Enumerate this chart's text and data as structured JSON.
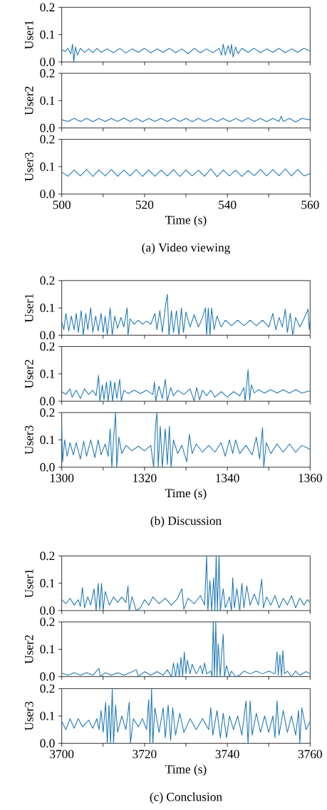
{
  "chart_data": [
    {
      "type": "line",
      "ylabel": "User1",
      "xlim": [
        500,
        560
      ],
      "xticks": [
        500,
        {
          "value": 510,
          "label": null
        },
        520,
        {
          "value": 530,
          "label": null
        },
        540,
        {
          "value": 550,
          "label": null
        },
        560
      ],
      "ylim": [
        0,
        0.2
      ],
      "yticks": [
        {
          "value": 0,
          "label": "0.0"
        },
        {
          "value": 0.1,
          "label": "0.1"
        },
        {
          "value": 0.2,
          "label": "0.2"
        }
      ],
      "tick_labels": "y",
      "series": [
        {
          "color": "#1f77b4",
          "x": [
            500,
            500.8,
            501.5,
            502.2,
            502.6,
            502.9,
            503.3,
            503.8,
            504.5,
            505.5,
            506.5,
            507.5,
            508.5,
            509.5,
            511,
            512.5,
            514,
            515.5,
            517,
            518.5,
            520,
            521.5,
            523,
            524.5,
            526,
            527.5,
            529,
            530.5,
            532,
            533.5,
            535,
            536.5,
            538,
            538.6,
            539,
            539.5,
            540.2,
            540.7,
            541,
            541.4,
            542,
            542.6,
            543.5,
            545,
            546.5,
            548,
            549.5,
            551,
            552.5,
            554,
            555.5,
            557,
            558.5,
            560
          ],
          "values": [
            0.045,
            0.038,
            0.05,
            0.03,
            0.065,
            0.0,
            0.055,
            0.025,
            0.05,
            0.035,
            0.048,
            0.034,
            0.05,
            0.035,
            0.048,
            0.034,
            0.05,
            0.033,
            0.048,
            0.035,
            0.05,
            0.034,
            0.048,
            0.035,
            0.05,
            0.034,
            0.048,
            0.03,
            0.05,
            0.034,
            0.048,
            0.034,
            0.05,
            0.025,
            0.065,
            0.025,
            0.06,
            0.03,
            0.065,
            0.018,
            0.055,
            0.03,
            0.05,
            0.035,
            0.05,
            0.034,
            0.048,
            0.035,
            0.05,
            0.034,
            0.048,
            0.035,
            0.05,
            0.04
          ]
        }
      ]
    },
    {
      "type": "line",
      "ylabel": "User2",
      "xlim": [
        500,
        560
      ],
      "xticks": [
        500,
        {
          "value": 510,
          "label": null
        },
        520,
        {
          "value": 530,
          "label": null
        },
        540,
        {
          "value": 550,
          "label": null
        },
        560
      ],
      "ylim": [
        0,
        0.2
      ],
      "yticks": [
        {
          "value": 0,
          "label": "0.0"
        },
        {
          "value": 0.1,
          "label": "0.1"
        },
        {
          "value": 0.2,
          "label": "0.2"
        }
      ],
      "tick_labels": "y",
      "series": [
        {
          "color": "#1f77b4",
          "x": [
            500,
            501.5,
            503,
            504.5,
            506,
            507.5,
            509,
            510.5,
            512,
            513.5,
            515,
            516.5,
            518,
            519.5,
            521,
            522.5,
            524,
            525.5,
            527,
            528.5,
            530,
            531.5,
            533,
            534.5,
            536,
            537.5,
            539,
            540.5,
            542,
            543.5,
            545,
            546.5,
            548,
            549.5,
            551,
            552.5,
            553,
            553.5,
            555,
            556.5,
            558,
            560
          ],
          "values": [
            0.03,
            0.024,
            0.035,
            0.024,
            0.035,
            0.023,
            0.035,
            0.024,
            0.035,
            0.024,
            0.036,
            0.024,
            0.035,
            0.023,
            0.035,
            0.024,
            0.035,
            0.024,
            0.036,
            0.024,
            0.035,
            0.023,
            0.035,
            0.024,
            0.035,
            0.024,
            0.035,
            0.023,
            0.035,
            0.024,
            0.036,
            0.024,
            0.035,
            0.023,
            0.035,
            0.024,
            0.043,
            0.024,
            0.035,
            0.022,
            0.035,
            0.03
          ]
        }
      ]
    },
    {
      "type": "line",
      "ylabel": "User3",
      "xlabel": "Time (s)",
      "annotations": [
        "(a) Video viewing"
      ],
      "xlim": [
        500,
        560
      ],
      "xticks": [
        500,
        {
          "value": 510,
          "label": null
        },
        520,
        {
          "value": 530,
          "label": null
        },
        540,
        {
          "value": 550,
          "label": null
        },
        560
      ],
      "ylim": [
        0,
        0.2
      ],
      "yticks": [
        {
          "value": 0,
          "label": "0.0"
        },
        {
          "value": 0.1,
          "label": "0.1"
        },
        {
          "value": 0.2,
          "label": "0.2"
        }
      ],
      "series": [
        {
          "color": "#1f77b4",
          "x": [
            500,
            501.5,
            503,
            504.5,
            506,
            507.5,
            509,
            510.5,
            512,
            513.5,
            515,
            516.5,
            518,
            519.5,
            521,
            522.5,
            524,
            525.5,
            527,
            528.5,
            530,
            531.5,
            533,
            534.5,
            536,
            537.5,
            539,
            540.5,
            542,
            543.5,
            545,
            546.5,
            548,
            549.5,
            551,
            552.5,
            554,
            555.5,
            557,
            558.5,
            560
          ],
          "values": [
            0.08,
            0.065,
            0.088,
            0.066,
            0.09,
            0.064,
            0.088,
            0.066,
            0.09,
            0.065,
            0.088,
            0.066,
            0.09,
            0.064,
            0.088,
            0.065,
            0.087,
            0.066,
            0.089,
            0.064,
            0.088,
            0.066,
            0.087,
            0.065,
            0.092,
            0.063,
            0.088,
            0.066,
            0.087,
            0.064,
            0.086,
            0.067,
            0.09,
            0.066,
            0.089,
            0.067,
            0.092,
            0.066,
            0.09,
            0.066,
            0.075
          ]
        }
      ]
    },
    {
      "type": "line",
      "ylabel": "User1",
      "xlim": [
        1300,
        1360
      ],
      "xticks": [
        1300,
        {
          "value": 1310,
          "label": null
        },
        1320,
        {
          "value": 1330,
          "label": null
        },
        1340,
        {
          "value": 1350,
          "label": null
        },
        1360
      ],
      "ylim": [
        0,
        0.2
      ],
      "yticks": [
        {
          "value": 0,
          "label": "0.0"
        },
        {
          "value": 0.1,
          "label": "0.1"
        },
        {
          "value": 0.2,
          "label": "0.2"
        }
      ],
      "tick_labels": "y",
      "series": [
        {
          "color": "#1f77b4",
          "x": [
            1300,
            1300.5,
            1301,
            1301.7,
            1302.3,
            1303,
            1303.5,
            1304,
            1304.7,
            1305.2,
            1305.8,
            1306.3,
            1307,
            1307.5,
            1308.2,
            1308.8,
            1309.5,
            1310,
            1310.5,
            1311,
            1311.7,
            1312.2,
            1312.8,
            1313.5,
            1314.3,
            1315,
            1315.8,
            1316,
            1316.5,
            1317.5,
            1318.5,
            1319.5,
            1320.5,
            1321.5,
            1322.5,
            1323,
            1323.7,
            1324.3,
            1325,
            1325.5,
            1325.9,
            1326.5,
            1327,
            1327.7,
            1328.3,
            1328.9,
            1329.4,
            1330,
            1331,
            1332,
            1333,
            1334,
            1334.7,
            1335,
            1335.4,
            1335.8,
            1336.2,
            1336.8,
            1337.5,
            1338.5,
            1339.5,
            1341,
            1342.5,
            1344,
            1345.5,
            1347,
            1348.5,
            1350,
            1351,
            1351.7,
            1352.5,
            1353.3,
            1354,
            1354.5,
            1355.2,
            1355.8,
            1356.5,
            1357.5,
            1358.5,
            1359.5,
            1359.8,
            1360
          ],
          "values": [
            0.05,
            0.02,
            0.08,
            0.015,
            0.07,
            0.02,
            0.08,
            0.01,
            0.09,
            0.0,
            0.08,
            0.02,
            0.1,
            0.01,
            0.07,
            0.015,
            0.08,
            0.01,
            0.07,
            0.0,
            0.1,
            0.0,
            0.07,
            0.025,
            0.065,
            0.03,
            0.1,
            0.0,
            0.06,
            0.04,
            0.055,
            0.04,
            0.052,
            0.04,
            0.08,
            0.02,
            0.09,
            0.01,
            0.1,
            0.15,
            0.0,
            0.09,
            0.01,
            0.09,
            0.0,
            0.1,
            0.01,
            0.085,
            0.03,
            0.075,
            0.03,
            0.065,
            0.1,
            0.0,
            0.1,
            0.0,
            0.1,
            0.02,
            0.07,
            0.03,
            0.055,
            0.035,
            0.055,
            0.035,
            0.055,
            0.035,
            0.055,
            0.03,
            0.08,
            0.02,
            0.065,
            0.03,
            0.095,
            0.01,
            0.08,
            0.0,
            0.065,
            0.03,
            0.06,
            0.095,
            0.02,
            0.05
          ]
        }
      ]
    },
    {
      "type": "line",
      "ylabel": "User2",
      "xlim": [
        1300,
        1360
      ],
      "xticks": [
        1300,
        {
          "value": 1310,
          "label": null
        },
        1320,
        {
          "value": 1330,
          "label": null
        },
        1340,
        {
          "value": 1350,
          "label": null
        },
        1360
      ],
      "ylim": [
        0,
        0.2
      ],
      "yticks": [
        {
          "value": 0,
          "label": "0.0"
        },
        {
          "value": 0.1,
          "label": "0.1"
        },
        {
          "value": 0.2,
          "label": "0.2"
        }
      ],
      "tick_labels": "y",
      "series": [
        {
          "color": "#1f77b4",
          "x": [
            1300,
            1301,
            1302,
            1302.5,
            1303.5,
            1304.5,
            1305.5,
            1306.5,
            1307.5,
            1308.3,
            1308.9,
            1309.2,
            1309.8,
            1310.2,
            1310.8,
            1311.2,
            1311.8,
            1312.3,
            1312.8,
            1313.3,
            1314,
            1314.4,
            1315,
            1316,
            1317.5,
            1319,
            1320.5,
            1322,
            1322.4,
            1322.7,
            1323.5,
            1324.3,
            1325,
            1325.5,
            1326.3,
            1327,
            1328,
            1329.5,
            1331,
            1332,
            1332.6,
            1333.3,
            1334,
            1335,
            1336,
            1337,
            1338.5,
            1340,
            1341.5,
            1343,
            1344,
            1344.3,
            1345,
            1345.4,
            1345.8,
            1346.5,
            1347.5,
            1349,
            1350.5,
            1352,
            1353.5,
            1355,
            1356.5,
            1358,
            1360
          ],
          "values": [
            0.035,
            0.025,
            0.045,
            0.015,
            0.04,
            0.01,
            0.045,
            0.025,
            0.04,
            0.02,
            0.095,
            0.0,
            0.06,
            0.005,
            0.07,
            0.0,
            0.075,
            0.0,
            0.07,
            0.01,
            0.08,
            0.0,
            0.04,
            0.028,
            0.04,
            0.028,
            0.04,
            0.025,
            0.07,
            0.0,
            0.055,
            0.01,
            0.08,
            0.0,
            0.05,
            0.02,
            0.04,
            0.025,
            0.045,
            0.0,
            0.05,
            0.005,
            0.04,
            0.02,
            0.04,
            0.015,
            0.035,
            0.015,
            0.035,
            0.02,
            0.05,
            0.0,
            0.115,
            0.005,
            0.06,
            0.03,
            0.042,
            0.03,
            0.042,
            0.03,
            0.042,
            0.03,
            0.042,
            0.03,
            0.038
          ]
        }
      ]
    },
    {
      "type": "line",
      "ylabel": "User3",
      "xlabel": "Time (s)",
      "annotations": [
        "(b) Discussion"
      ],
      "xlim": [
        1300,
        1360
      ],
      "xticks": [
        1300,
        {
          "value": 1310,
          "label": null
        },
        1320,
        {
          "value": 1330,
          "label": null
        },
        1340,
        {
          "value": 1350,
          "label": null
        },
        1360
      ],
      "ylim": [
        0,
        0.2
      ],
      "yticks": [
        {
          "value": 0,
          "label": "0.0"
        },
        {
          "value": 0.1,
          "label": "0.1"
        },
        {
          "value": 0.2,
          "label": "0.2"
        }
      ],
      "series": [
        {
          "color": "#1f77b4",
          "x": [
            1300,
            1300.2,
            1300.7,
            1301.3,
            1302,
            1302.8,
            1303.5,
            1304.5,
            1305.3,
            1306,
            1307,
            1308,
            1308.8,
            1309.5,
            1310.5,
            1311.2,
            1311.7,
            1312.1,
            1312.6,
            1313,
            1313.3,
            1313.8,
            1314.5,
            1315.5,
            1317,
            1318.5,
            1320,
            1321.5,
            1322.2,
            1322.7,
            1323,
            1323.3,
            1323.8,
            1324.3,
            1325,
            1325.5,
            1326,
            1326.4,
            1327,
            1328,
            1329,
            1330.2,
            1330.8,
            1331.5,
            1332.5,
            1334,
            1335.5,
            1337,
            1338.5,
            1339.5,
            1340.5,
            1341.3,
            1342,
            1343,
            1344.5,
            1346,
            1347,
            1347.8,
            1348.5,
            1348.8,
            1349.4,
            1350.5,
            1352,
            1353.5,
            1355,
            1356.5,
            1358,
            1360
          ],
          "values": [
            0.14,
            0.02,
            0.1,
            0.04,
            0.09,
            0.045,
            0.09,
            0.03,
            0.095,
            0.04,
            0.1,
            0.035,
            0.1,
            0.045,
            0.085,
            0.04,
            0.14,
            0.0,
            0.12,
            0.2,
            0.0,
            0.11,
            0.05,
            0.08,
            0.06,
            0.077,
            0.06,
            0.08,
            0.0,
            0.16,
            0.2,
            0.0,
            0.15,
            0.0,
            0.14,
            0.01,
            0.15,
            0.0,
            0.1,
            0.05,
            0.08,
            0.02,
            0.12,
            0.05,
            0.085,
            0.055,
            0.08,
            0.055,
            0.09,
            0.04,
            0.1,
            0.05,
            0.1,
            0.05,
            0.08,
            0.045,
            0.11,
            0.03,
            0.145,
            0.0,
            0.09,
            0.05,
            0.085,
            0.055,
            0.085,
            0.055,
            0.08,
            0.065
          ]
        }
      ]
    },
    {
      "type": "line",
      "ylabel": "User1",
      "xlim": [
        3700,
        3760
      ],
      "xticks": [
        3700,
        {
          "value": 3710,
          "label": null
        },
        3720,
        {
          "value": 3730,
          "label": null
        },
        3740,
        {
          "value": 3750,
          "label": null
        },
        3760
      ],
      "ylim": [
        0,
        0.2
      ],
      "yticks": [
        {
          "value": 0,
          "label": "0.0"
        },
        {
          "value": 0.1,
          "label": "0.1"
        },
        {
          "value": 0.2,
          "label": "0.2"
        }
      ],
      "tick_labels": "y",
      "series": [
        {
          "color": "#1f77b4",
          "x": [
            3700,
            3701,
            3702,
            3703,
            3704,
            3704.5,
            3705,
            3705.5,
            3706.3,
            3707,
            3707.8,
            3708.3,
            3708.8,
            3709.2,
            3709.6,
            3710,
            3710.5,
            3711.5,
            3712.5,
            3713.5,
            3714.5,
            3715.5,
            3716,
            3716.3,
            3717,
            3718,
            3719,
            3720,
            3721,
            3722,
            3723.5,
            3725,
            3726.5,
            3728,
            3729,
            3729.5,
            3730.5,
            3732,
            3733.5,
            3734.5,
            3735,
            3735.3,
            3735.8,
            3736.2,
            3736.7,
            3737,
            3737.3,
            3737.6,
            3738,
            3738.3,
            3739,
            3739.5,
            3740.5,
            3741,
            3741.3,
            3741.7,
            3742.3,
            3743,
            3743.5,
            3744,
            3744.7,
            3745.5,
            3746.5,
            3747.5,
            3748.3,
            3748.7,
            3749.5,
            3750.5,
            3751.5,
            3752.5,
            3753.5,
            3754.5,
            3755.5,
            3756.5,
            3757.5,
            3758.5,
            3759.3,
            3760
          ],
          "values": [
            0.04,
            0.025,
            0.045,
            0.02,
            0.04,
            0.015,
            0.085,
            0.01,
            0.05,
            0.02,
            0.08,
            0.0,
            0.1,
            0.005,
            0.1,
            0.0,
            0.07,
            0.02,
            0.05,
            0.03,
            0.05,
            0.03,
            0.09,
            0.0,
            0.05,
            0.0,
            0.01,
            0.04,
            0.02,
            0.05,
            0.025,
            0.045,
            0.02,
            0.045,
            0.08,
            0.005,
            0.045,
            0.025,
            0.055,
            0.02,
            0.2,
            0.0,
            0.11,
            0.0,
            0.12,
            0.0,
            0.2,
            0.0,
            0.2,
            0.0,
            0.08,
            0.01,
            0.05,
            0.0,
            0.12,
            0.01,
            0.08,
            0.0,
            0.1,
            0.01,
            0.09,
            0.02,
            0.06,
            0.02,
            0.115,
            0.01,
            0.05,
            0.02,
            0.055,
            0.01,
            0.045,
            0.02,
            0.055,
            0.01,
            0.045,
            0.02,
            0.04,
            0.03
          ]
        }
      ]
    },
    {
      "type": "line",
      "ylabel": "User2",
      "xlim": [
        3700,
        3760
      ],
      "xticks": [
        3700,
        {
          "value": 3710,
          "label": null
        },
        3720,
        {
          "value": 3730,
          "label": null
        },
        3740,
        {
          "value": 3750,
          "label": null
        },
        3760
      ],
      "ylim": [
        0,
        0.2
      ],
      "yticks": [
        {
          "value": 0,
          "label": "0.0"
        },
        {
          "value": 0.1,
          "label": "0.1"
        },
        {
          "value": 0.2,
          "label": "0.2"
        }
      ],
      "tick_labels": "y",
      "series": [
        {
          "color": "#1f77b4",
          "x": [
            3700,
            3701.5,
            3703,
            3704.5,
            3706,
            3707.5,
            3709,
            3709.3,
            3710.5,
            3712,
            3713.5,
            3715,
            3716.5,
            3718,
            3718.5,
            3720,
            3721.5,
            3723,
            3724.5,
            3725.5,
            3726.5,
            3727,
            3727.5,
            3728,
            3728.4,
            3728.8,
            3729.2,
            3729.6,
            3730,
            3730.3,
            3731,
            3731.5,
            3732.5,
            3733.5,
            3734,
            3734.5,
            3735,
            3736,
            3736.3,
            3736.6,
            3736.9,
            3737.2,
            3737.5,
            3737.8,
            3738.3,
            3738.6,
            3739,
            3739.3,
            3739.8,
            3740.5,
            3741,
            3742,
            3743,
            3744,
            3745.5,
            3747,
            3748.5,
            3750,
            3751.5,
            3752,
            3752.3,
            3752.7,
            3753.1,
            3753.4,
            3753.8,
            3754.5,
            3755.5,
            3756.5,
            3757.5,
            3759,
            3760
          ],
          "values": [
            0.012,
            0.005,
            0.014,
            0.005,
            0.014,
            0.005,
            0.03,
            0.0,
            0.014,
            0.005,
            0.014,
            0.005,
            0.014,
            0.025,
            0.0,
            0.018,
            0.005,
            0.018,
            0.005,
            0.025,
            0.0,
            0.05,
            0.0,
            0.05,
            0.0,
            0.07,
            0.0,
            0.09,
            0.01,
            0.06,
            0.01,
            0.045,
            0.01,
            0.04,
            0.01,
            0.05,
            0.01,
            0.02,
            0.0,
            0.2,
            0.0,
            0.2,
            0.0,
            0.12,
            0.0,
            0.08,
            0.155,
            0.0,
            0.04,
            0.0,
            0.02,
            0.0,
            0.005,
            0.02,
            0.01,
            0.02,
            0.01,
            0.02,
            0.01,
            0.09,
            0.005,
            0.08,
            0.0,
            0.095,
            0.01,
            0.02,
            0.0,
            0.02,
            0.005,
            0.018,
            0.01
          ]
        }
      ]
    },
    {
      "type": "line",
      "ylabel": "User3",
      "xlabel": "Time (s)",
      "annotations": [
        "(c) Conclusion"
      ],
      "xlim": [
        3700,
        3760
      ],
      "xticks": [
        3700,
        {
          "value": 3710,
          "label": null
        },
        3720,
        {
          "value": 3730,
          "label": null
        },
        3740,
        {
          "value": 3750,
          "label": null
        },
        3760
      ],
      "ylim": [
        0,
        0.2
      ],
      "yticks": [
        {
          "value": 0,
          "label": "0.0"
        },
        {
          "value": 0.1,
          "label": "0.1"
        },
        {
          "value": 0.2,
          "label": "0.2"
        }
      ],
      "series": [
        {
          "color": "#1f77b4",
          "x": [
            3700,
            3701,
            3702,
            3703,
            3704,
            3705,
            3706.5,
            3707.5,
            3708.5,
            3709,
            3709.5,
            3710,
            3710.6,
            3711,
            3711.4,
            3711.8,
            3712.2,
            3712.5,
            3713,
            3713.5,
            3714.5,
            3715.5,
            3716.3,
            3716.6,
            3717.3,
            3718.5,
            3719.5,
            3720.5,
            3721,
            3721.3,
            3721.7,
            3722,
            3722.5,
            3723.5,
            3724.5,
            3725,
            3725.7,
            3726.3,
            3726.8,
            3727.5,
            3728.5,
            3729.5,
            3731,
            3732.5,
            3734,
            3735.5,
            3736,
            3736.5,
            3737.5,
            3738.3,
            3739,
            3739.8,
            3740.5,
            3741.5,
            3742.5,
            3743.5,
            3744.5,
            3745,
            3745.5,
            3746,
            3747,
            3748,
            3749,
            3750,
            3751,
            3751.5,
            3752,
            3752.5,
            3753.5,
            3754.5,
            3755.5,
            3756.5,
            3757.2,
            3757.5,
            3758,
            3759,
            3760
          ],
          "values": [
            0.08,
            0.05,
            0.09,
            0.055,
            0.09,
            0.06,
            0.085,
            0.055,
            0.09,
            0.05,
            0.12,
            0.04,
            0.15,
            0.0,
            0.14,
            0.0,
            0.2,
            0.0,
            0.14,
            0.04,
            0.1,
            0.05,
            0.15,
            0.0,
            0.09,
            0.06,
            0.09,
            0.05,
            0.16,
            0.0,
            0.2,
            0.0,
            0.13,
            0.04,
            0.13,
            0.02,
            0.14,
            0.01,
            0.13,
            0.03,
            0.11,
            0.04,
            0.09,
            0.05,
            0.09,
            0.05,
            0.13,
            0.03,
            0.12,
            0.02,
            0.11,
            0.02,
            0.1,
            0.05,
            0.1,
            0.03,
            0.155,
            0.0,
            0.155,
            0.03,
            0.11,
            0.04,
            0.1,
            0.04,
            0.1,
            0.02,
            0.155,
            0.03,
            0.12,
            0.04,
            0.1,
            0.03,
            0.12,
            0.0,
            0.13,
            0.05,
            0.08
          ]
        }
      ]
    }
  ]
}
